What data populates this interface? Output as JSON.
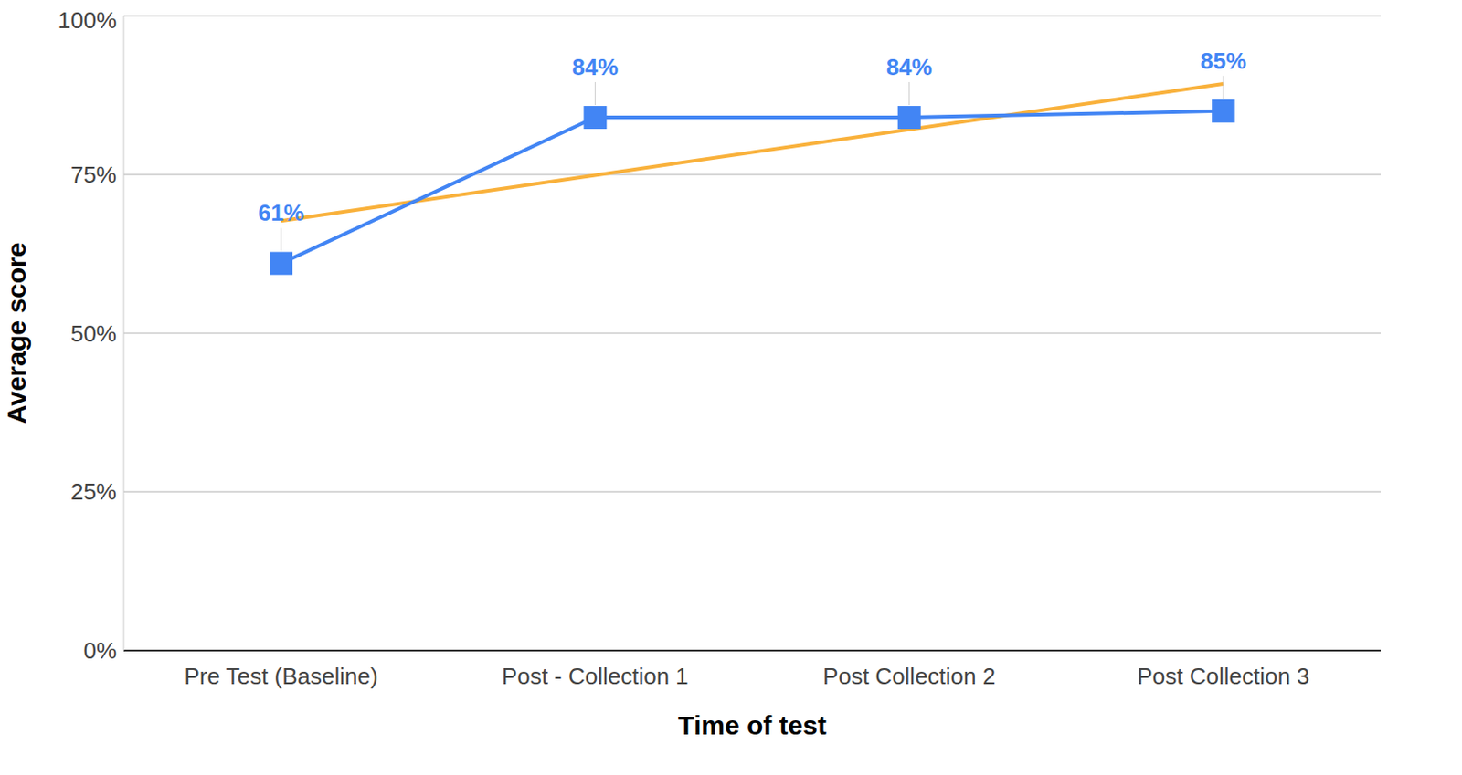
{
  "chart_data": {
    "type": "line",
    "x_label": "Time of test",
    "y_label": "Average score",
    "categories": [
      "Pre Test (Baseline)",
      "Post - Collection 1",
      "Post Collection 2",
      "Post Collection 3"
    ],
    "values": [
      61,
      84,
      84,
      85
    ],
    "value_labels": [
      "61%",
      "84%",
      "84%",
      "85%"
    ],
    "color": "#4285f4",
    "marker": "square",
    "data_labels": true,
    "trendline": {
      "values": [
        67.7,
        74.9,
        82.1,
        89.3
      ],
      "color": "#f9b13b"
    },
    "ylim": [
      0,
      100
    ],
    "yticks": [
      {
        "value": 0,
        "label": "0%"
      },
      {
        "value": 25,
        "label": "25%"
      },
      {
        "value": 50,
        "label": "50%"
      },
      {
        "value": 75,
        "label": "75%"
      },
      {
        "value": 100,
        "label": "100%"
      }
    ],
    "grid": true
  }
}
